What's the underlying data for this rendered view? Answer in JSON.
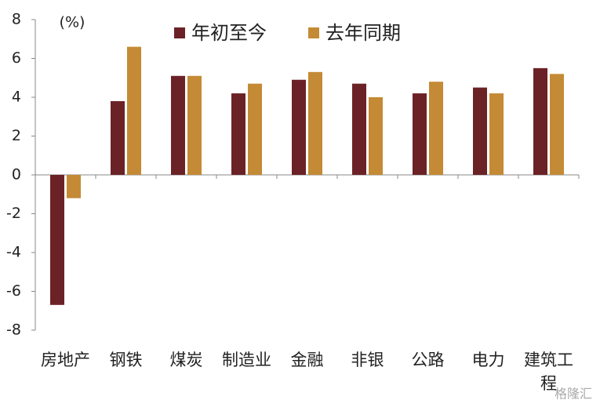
{
  "chart_data": {
    "type": "bar",
    "unit_label": "(%)",
    "watermark": "格隆汇",
    "categories": [
      "房地产",
      "钢铁",
      "煤炭",
      "制造业",
      "金融",
      "非银",
      "公路",
      "电力",
      "建筑工程"
    ],
    "series": [
      {
        "name": "年初至今",
        "color": "#6b2226",
        "values": [
          -6.7,
          3.8,
          5.1,
          4.2,
          4.9,
          4.7,
          4.2,
          4.5,
          5.5
        ]
      },
      {
        "name": "去年同期",
        "color": "#c48a35",
        "values": [
          -1.2,
          6.6,
          5.1,
          4.7,
          5.3,
          4.0,
          4.8,
          4.2,
          5.2
        ]
      }
    ],
    "ylim": [
      -8,
      8
    ],
    "yticks": [
      -8,
      -6,
      -4,
      -2,
      0,
      2,
      4,
      6,
      8
    ]
  }
}
